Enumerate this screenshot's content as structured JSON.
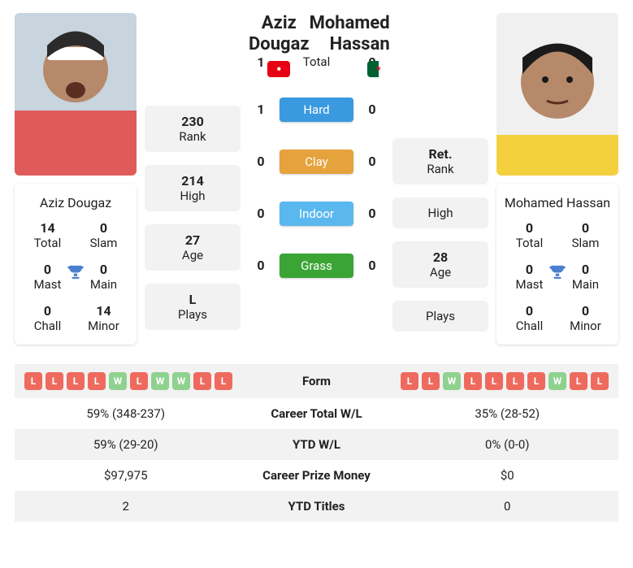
{
  "player1": {
    "name": "Aziz Dougaz",
    "flag": "tn",
    "caption": "Aziz Dougaz",
    "mini": {
      "total": {
        "v": "14",
        "l": "Total"
      },
      "slam": {
        "v": "0",
        "l": "Slam"
      },
      "mast": {
        "v": "0",
        "l": "Mast"
      },
      "main": {
        "v": "0",
        "l": "Main"
      },
      "chall": {
        "v": "0",
        "l": "Chall"
      },
      "minor": {
        "v": "14",
        "l": "Minor"
      }
    },
    "stats": {
      "rank": {
        "v": "230",
        "l": "Rank"
      },
      "high": {
        "v": "214",
        "l": "High"
      },
      "age": {
        "v": "27",
        "l": "Age"
      },
      "plays": {
        "v": "L",
        "l": "Plays"
      }
    },
    "form": [
      "L",
      "L",
      "L",
      "L",
      "W",
      "L",
      "W",
      "W",
      "L",
      "L"
    ],
    "career_wl": "59% (348-237)",
    "ytd_wl": "59% (29-20)",
    "prize": "$97,975",
    "ytd_titles": "2"
  },
  "player2": {
    "name": "Mohamed Hassan",
    "flag": "dz",
    "caption": "Mohamed Hassan",
    "mini": {
      "total": {
        "v": "0",
        "l": "Total"
      },
      "slam": {
        "v": "0",
        "l": "Slam"
      },
      "mast": {
        "v": "0",
        "l": "Mast"
      },
      "main": {
        "v": "0",
        "l": "Main"
      },
      "chall": {
        "v": "0",
        "l": "Chall"
      },
      "minor": {
        "v": "0",
        "l": "Minor"
      }
    },
    "stats": {
      "rank": {
        "v": "Ret.",
        "l": "Rank"
      },
      "high": {
        "v": "",
        "l": "High"
      },
      "age": {
        "v": "28",
        "l": "Age"
      },
      "plays": {
        "v": "",
        "l": "Plays"
      }
    },
    "form": [
      "L",
      "L",
      "W",
      "L",
      "L",
      "L",
      "L",
      "W",
      "L",
      "L"
    ],
    "career_wl": "35% (28-52)",
    "ytd_wl": "0% (0-0)",
    "prize": "$0",
    "ytd_titles": "0"
  },
  "h2h": {
    "total": {
      "p1": "1",
      "label": "Total",
      "p2": "0"
    },
    "hard": {
      "p1": "1",
      "label": "Hard",
      "p2": "0"
    },
    "clay": {
      "p1": "0",
      "label": "Clay",
      "p2": "0"
    },
    "indoor": {
      "p1": "0",
      "label": "Indoor",
      "p2": "0"
    },
    "grass": {
      "p1": "0",
      "label": "Grass",
      "p2": "0"
    }
  },
  "table_labels": {
    "form": "Form",
    "career_wl": "Career Total W/L",
    "ytd_wl": "YTD W/L",
    "prize": "Career Prize Money",
    "ytd_titles": "YTD Titles"
  },
  "colors": {
    "hard": "#3b99e0",
    "clay": "#e6a23c",
    "indoor": "#5bb8ef",
    "grass": "#3aa535",
    "win": "#8fd18f",
    "loss": "#ef6a5e",
    "trophy": "#4a7fcf",
    "row_alt": "#f2f2f2"
  }
}
